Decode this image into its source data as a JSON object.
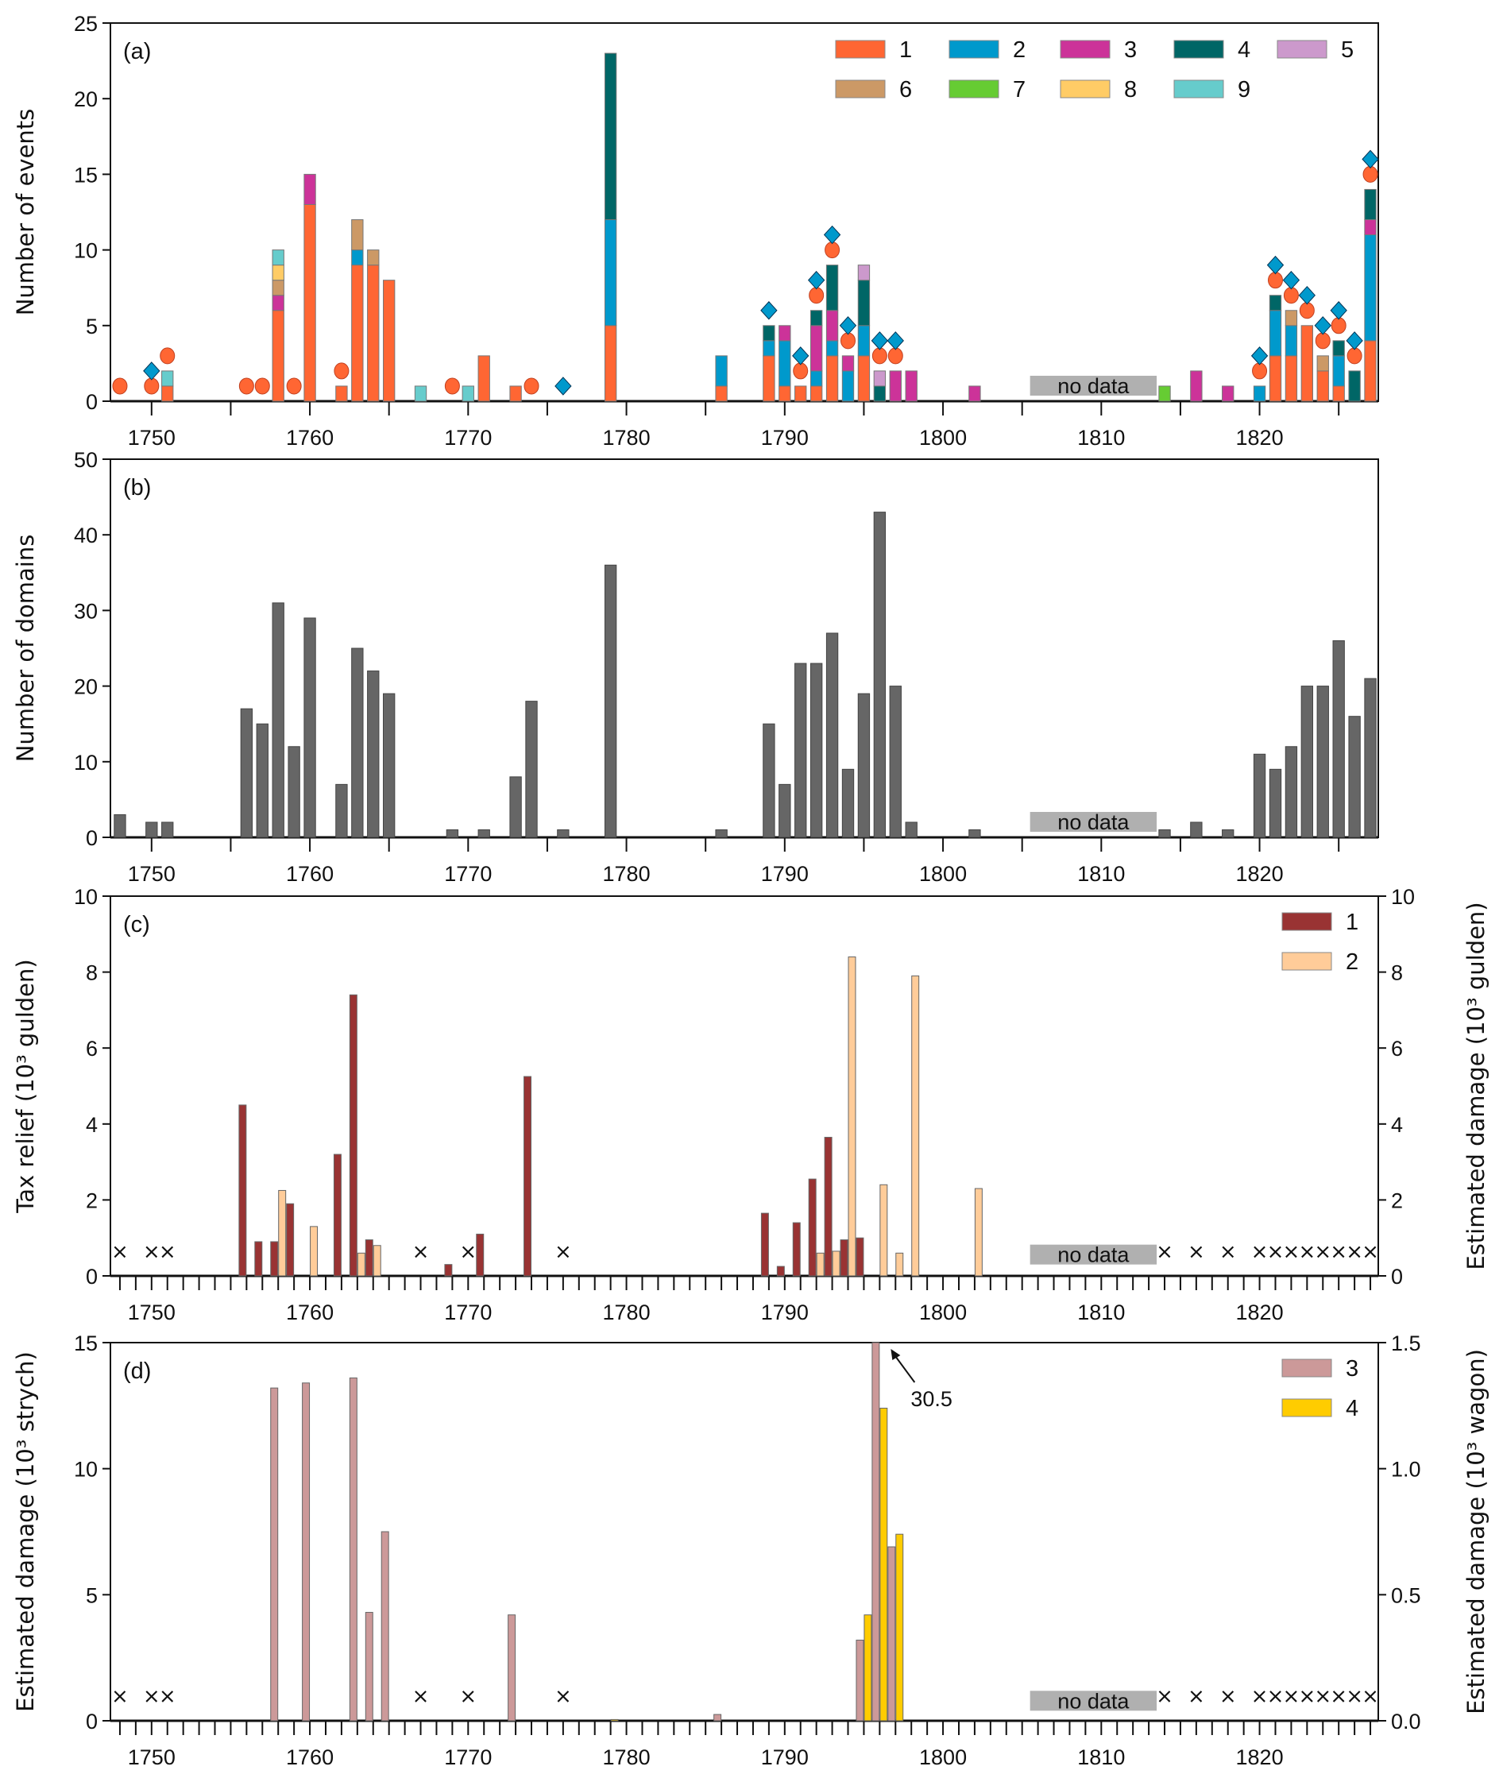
{
  "chart_data": [
    {
      "id": "a",
      "type": "bar",
      "stacked": true,
      "panel_label": "(a)",
      "ylabel": "Number of events",
      "xlim": [
        1747.4,
        1827.5
      ],
      "ylim": [
        0,
        25
      ],
      "yticks": [
        0,
        5,
        10,
        15,
        20,
        25
      ],
      "xticks": [
        1750,
        1760,
        1770,
        1780,
        1790,
        1800,
        1810,
        1820
      ],
      "xminor_step": 5,
      "legend": {
        "placement": "top-right",
        "columns": 5,
        "entries": [
          {
            "label": "1",
            "color": "#FF6633"
          },
          {
            "label": "2",
            "color": "#0099CC"
          },
          {
            "label": "3",
            "color": "#CC3399"
          },
          {
            "label": "4",
            "color": "#006666"
          },
          {
            "label": "5",
            "color": "#CC99CC"
          },
          {
            "label": "6",
            "color": "#CC9966"
          },
          {
            "label": "7",
            "color": "#66CC33"
          },
          {
            "label": "8",
            "color": "#FFCC66"
          },
          {
            "label": "9",
            "color": "#66CCCC"
          }
        ]
      },
      "bars": [
        {
          "year": 1751,
          "stack": [
            [
              1,
              1
            ],
            [
              9,
              1
            ]
          ]
        },
        {
          "year": 1758,
          "stack": [
            [
              1,
              6
            ],
            [
              3,
              1
            ],
            [
              6,
              1
            ],
            [
              8,
              1
            ],
            [
              9,
              1
            ]
          ]
        },
        {
          "year": 1760,
          "stack": [
            [
              1,
              13
            ],
            [
              3,
              2
            ]
          ]
        },
        {
          "year": 1762,
          "stack": [
            [
              1,
              1
            ]
          ]
        },
        {
          "year": 1763,
          "stack": [
            [
              1,
              9
            ],
            [
              2,
              1
            ],
            [
              6,
              2
            ]
          ]
        },
        {
          "year": 1764,
          "stack": [
            [
              1,
              9
            ],
            [
              6,
              1
            ]
          ]
        },
        {
          "year": 1765,
          "stack": [
            [
              1,
              8
            ]
          ]
        },
        {
          "year": 1767,
          "stack": [
            [
              9,
              1
            ]
          ]
        },
        {
          "year": 1770,
          "stack": [
            [
              9,
              1
            ]
          ]
        },
        {
          "year": 1771,
          "stack": [
            [
              1,
              3
            ]
          ]
        },
        {
          "year": 1773,
          "stack": [
            [
              1,
              1
            ]
          ]
        },
        {
          "year": 1779,
          "stack": [
            [
              1,
              5
            ],
            [
              2,
              7
            ],
            [
              4,
              11
            ]
          ]
        },
        {
          "year": 1786,
          "stack": [
            [
              1,
              1
            ],
            [
              2,
              2
            ]
          ]
        },
        {
          "year": 1789,
          "stack": [
            [
              1,
              3
            ],
            [
              2,
              1
            ],
            [
              4,
              1
            ]
          ]
        },
        {
          "year": 1790,
          "stack": [
            [
              1,
              1
            ],
            [
              2,
              3
            ],
            [
              3,
              1
            ]
          ]
        },
        {
          "year": 1791,
          "stack": [
            [
              1,
              1
            ]
          ]
        },
        {
          "year": 1792,
          "stack": [
            [
              1,
              1
            ],
            [
              2,
              1
            ],
            [
              3,
              3
            ],
            [
              4,
              1
            ]
          ]
        },
        {
          "year": 1793,
          "stack": [
            [
              1,
              3
            ],
            [
              2,
              1
            ],
            [
              3,
              2
            ],
            [
              4,
              3
            ]
          ]
        },
        {
          "year": 1794,
          "stack": [
            [
              2,
              2
            ],
            [
              3,
              1
            ]
          ]
        },
        {
          "year": 1795,
          "stack": [
            [
              1,
              3
            ],
            [
              2,
              2
            ],
            [
              4,
              3
            ],
            [
              5,
              1
            ]
          ]
        },
        {
          "year": 1796,
          "stack": [
            [
              4,
              1
            ],
            [
              5,
              1
            ]
          ]
        },
        {
          "year": 1797,
          "stack": [
            [
              3,
              2
            ]
          ]
        },
        {
          "year": 1798,
          "stack": [
            [
              3,
              2
            ]
          ]
        },
        {
          "year": 1802,
          "stack": [
            [
              3,
              1
            ]
          ]
        },
        {
          "year": 1814,
          "stack": [
            [
              7,
              1
            ]
          ]
        },
        {
          "year": 1816,
          "stack": [
            [
              3,
              2
            ]
          ]
        },
        {
          "year": 1818,
          "stack": [
            [
              3,
              1
            ]
          ]
        },
        {
          "year": 1820,
          "stack": [
            [
              2,
              1
            ]
          ]
        },
        {
          "year": 1821,
          "stack": [
            [
              1,
              3
            ],
            [
              2,
              3
            ],
            [
              4,
              1
            ]
          ]
        },
        {
          "year": 1822,
          "stack": [
            [
              1,
              3
            ],
            [
              2,
              2
            ],
            [
              6,
              1
            ]
          ]
        },
        {
          "year": 1823,
          "stack": [
            [
              1,
              5
            ]
          ]
        },
        {
          "year": 1824,
          "stack": [
            [
              1,
              2
            ],
            [
              6,
              1
            ]
          ]
        },
        {
          "year": 1825,
          "stack": [
            [
              1,
              1
            ],
            [
              2,
              2
            ],
            [
              4,
              1
            ]
          ]
        },
        {
          "year": 1826,
          "stack": [
            [
              4,
              2
            ]
          ]
        },
        {
          "year": 1827,
          "stack": [
            [
              1,
              4
            ],
            [
              2,
              7
            ],
            [
              3,
              1
            ],
            [
              4,
              2
            ]
          ]
        }
      ],
      "circle_markers": [
        {
          "year": 1748,
          "y": 1
        },
        {
          "year": 1750,
          "y": 1
        },
        {
          "year": 1751,
          "y": 3
        },
        {
          "year": 1756,
          "y": 1
        },
        {
          "year": 1757,
          "y": 1
        },
        {
          "year": 1759,
          "y": 1
        },
        {
          "year": 1762,
          "y": 2
        },
        {
          "year": 1769,
          "y": 1
        },
        {
          "year": 1774,
          "y": 1
        },
        {
          "year": 1791,
          "y": 2
        },
        {
          "year": 1792,
          "y": 7
        },
        {
          "year": 1793,
          "y": 10
        },
        {
          "year": 1794,
          "y": 4
        },
        {
          "year": 1796,
          "y": 3
        },
        {
          "year": 1797,
          "y": 3
        },
        {
          "year": 1820,
          "y": 2
        },
        {
          "year": 1821,
          "y": 8
        },
        {
          "year": 1822,
          "y": 7
        },
        {
          "year": 1823,
          "y": 6
        },
        {
          "year": 1824,
          "y": 4
        },
        {
          "year": 1825,
          "y": 5
        },
        {
          "year": 1826,
          "y": 3
        },
        {
          "year": 1827,
          "y": 15
        }
      ],
      "diamond_markers": [
        {
          "year": 1750,
          "y": 2
        },
        {
          "year": 1776,
          "y": 1
        },
        {
          "year": 1789,
          "y": 6
        },
        {
          "year": 1791,
          "y": 3
        },
        {
          "year": 1792,
          "y": 8
        },
        {
          "year": 1793,
          "y": 11
        },
        {
          "year": 1794,
          "y": 5
        },
        {
          "year": 1796,
          "y": 4
        },
        {
          "year": 1797,
          "y": 4
        },
        {
          "year": 1820,
          "y": 3
        },
        {
          "year": 1821,
          "y": 9
        },
        {
          "year": 1822,
          "y": 8
        },
        {
          "year": 1823,
          "y": 7
        },
        {
          "year": 1824,
          "y": 5
        },
        {
          "year": 1825,
          "y": 6
        },
        {
          "year": 1826,
          "y": 4
        },
        {
          "year": 1827,
          "y": 16
        }
      ],
      "nodata": {
        "label": "no data",
        "from": 1805.5,
        "to": 1813.5
      }
    },
    {
      "id": "b",
      "type": "bar",
      "panel_label": "(b)",
      "ylabel": "Number of domains",
      "xlim": [
        1747.4,
        1827.5
      ],
      "ylim": [
        0,
        50
      ],
      "yticks": [
        0,
        10,
        20,
        30,
        40,
        50
      ],
      "xticks": [
        1750,
        1760,
        1770,
        1780,
        1790,
        1800,
        1810,
        1820
      ],
      "xminor_step": 5,
      "color": "#666666",
      "x": [
        1748,
        1750,
        1751,
        1756,
        1757,
        1758,
        1759,
        1760,
        1762,
        1763,
        1764,
        1765,
        1769,
        1771,
        1773,
        1774,
        1776,
        1779,
        1786,
        1789,
        1790,
        1791,
        1792,
        1793,
        1794,
        1795,
        1796,
        1797,
        1798,
        1802,
        1814,
        1816,
        1818,
        1820,
        1821,
        1822,
        1823,
        1824,
        1825,
        1826,
        1827
      ],
      "values": [
        3,
        2,
        2,
        17,
        15,
        31,
        12,
        29,
        7,
        25,
        22,
        19,
        1,
        1,
        8,
        18,
        1,
        36,
        1,
        15,
        7,
        23,
        23,
        27,
        9,
        19,
        43,
        20,
        2,
        1,
        1,
        2,
        1,
        11,
        9,
        12,
        20,
        20,
        26,
        16,
        21
      ],
      "nodata": {
        "label": "no data",
        "from": 1805.5,
        "to": 1813.5
      }
    },
    {
      "id": "c",
      "type": "bar",
      "panel_label": "(c)",
      "ylabel": "Tax relief (10³ gulden)",
      "ylabel_right": "Estimated damage (10³ gulden)",
      "xlim": [
        1747.4,
        1827.5
      ],
      "ylim": [
        0,
        10
      ],
      "ylim_right": [
        0,
        10
      ],
      "yticks": [
        0,
        2,
        4,
        6,
        8,
        10
      ],
      "xticks": [
        1750,
        1760,
        1770,
        1780,
        1790,
        1800,
        1810,
        1820
      ],
      "xminor_step": 1,
      "legend": {
        "placement": "top-right",
        "entries": [
          {
            "label": "1",
            "color": "#993333"
          },
          {
            "label": "2",
            "color": "#FFCC99"
          }
        ]
      },
      "series": [
        {
          "name": "1",
          "axis": "left",
          "offset": -0.25,
          "x": [
            1756,
            1757,
            1758,
            1759,
            1762,
            1763,
            1764,
            1769,
            1771,
            1774,
            1789,
            1790,
            1791,
            1792,
            1793,
            1794,
            1795
          ],
          "values": [
            4.5,
            0.9,
            0.9,
            1.9,
            3.2,
            7.4,
            0.95,
            0.3,
            1.1,
            5.25,
            1.65,
            0.25,
            1.4,
            2.55,
            3.65,
            0.95,
            1.0
          ]
        },
        {
          "name": "2",
          "axis": "right",
          "offset": 0.25,
          "x": [
            1758,
            1760,
            1763,
            1764,
            1792,
            1793,
            1794,
            1796,
            1797,
            1798,
            1802
          ],
          "values": [
            2.25,
            1.3,
            0.6,
            0.8,
            0.6,
            0.65,
            8.4,
            2.4,
            0.6,
            7.9,
            2.3
          ]
        }
      ],
      "cross_markers": {
        "y": 0.65,
        "years": [
          1748,
          1750,
          1751,
          1767,
          1770,
          1776,
          1814,
          1816,
          1818,
          1820,
          1821,
          1822,
          1823,
          1824,
          1825,
          1826,
          1827
        ]
      },
      "nodata": {
        "label": "no data",
        "from": 1805.5,
        "to": 1813.5
      }
    },
    {
      "id": "d",
      "type": "bar",
      "panel_label": "(d)",
      "ylabel": "Estimated damage (10³ strych)",
      "ylabel_right": "Estimated damage (10³ wagon)",
      "xlim": [
        1747.4,
        1827.5
      ],
      "ylim": [
        0,
        15
      ],
      "ylim_right": [
        0,
        1.5
      ],
      "yticks": [
        0,
        5,
        10,
        15
      ],
      "yticks_right": [
        "0.0",
        "0.5",
        "1.0",
        "1.5"
      ],
      "xticks": [
        1750,
        1760,
        1770,
        1780,
        1790,
        1800,
        1810,
        1820
      ],
      "xminor_step": 1,
      "legend": {
        "placement": "top-right",
        "entries": [
          {
            "label": "3",
            "color": "#CC9999"
          },
          {
            "label": "4",
            "color": "#FFCC00"
          }
        ]
      },
      "series": [
        {
          "name": "3",
          "axis": "left",
          "offset": -0.25,
          "x": [
            1758,
            1760,
            1763,
            1764,
            1765,
            1773,
            1786,
            1795,
            1796,
            1797
          ],
          "values": [
            13.2,
            13.4,
            13.6,
            4.3,
            7.5,
            4.2,
            0.25,
            3.2,
            30.5,
            6.9
          ]
        },
        {
          "name": "4",
          "axis": "right",
          "offset": 0.25,
          "x": [
            1779,
            1795,
            1796,
            1797
          ],
          "values": [
            0.005,
            0.42,
            1.24,
            0.74
          ]
        }
      ],
      "annotation": {
        "text": "30.5",
        "year": 1796
      },
      "cross_markers": {
        "y": 1.0,
        "years": [
          1748,
          1750,
          1751,
          1767,
          1770,
          1776,
          1814,
          1816,
          1818,
          1820,
          1821,
          1822,
          1823,
          1824,
          1825,
          1826,
          1827
        ]
      },
      "nodata": {
        "label": "no data",
        "from": 1805.5,
        "to": 1813.5
      }
    }
  ]
}
